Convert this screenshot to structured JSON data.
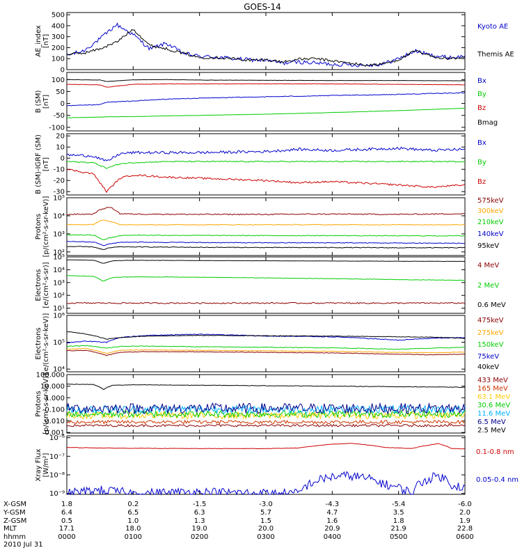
{
  "title": "GOES-14",
  "chart_data": [
    {
      "type": "line",
      "panel": "ae-index",
      "ylabel": [
        "AE_index",
        "[nT]"
      ],
      "yticks": [
        0,
        100,
        200,
        300,
        400,
        500
      ],
      "ylim": [
        0,
        520
      ],
      "x": [
        0,
        0.25,
        0.5,
        0.75,
        1.0,
        1.25,
        1.5,
        1.75,
        2.0,
        2.25,
        2.5,
        2.75,
        3.0,
        3.25,
        3.5,
        3.75,
        4.0,
        4.25,
        4.5,
        4.75,
        5.0,
        5.25,
        5.5,
        5.75,
        6.0
      ],
      "series": [
        {
          "name": "Kyoto AE",
          "color": "#0000cc",
          "values": [
            130,
            170,
            280,
            410,
            320,
            190,
            240,
            150,
            120,
            115,
            100,
            90,
            85,
            60,
            70,
            60,
            50,
            45,
            40,
            50,
            100,
            170,
            130,
            110,
            120
          ],
          "noise": 18
        },
        {
          "name": "Themis AE",
          "color": "#000000",
          "values": [
            140,
            150,
            190,
            250,
            370,
            220,
            190,
            150,
            110,
            110,
            100,
            85,
            90,
            70,
            95,
            100,
            80,
            60,
            40,
            50,
            90,
            170,
            120,
            100,
            110
          ],
          "noise": 12
        }
      ]
    },
    {
      "type": "line",
      "panel": "b-sm",
      "ylabel": [
        "B (SM)",
        "[nT]"
      ],
      "yticks": [
        -100,
        -50,
        0,
        50,
        100
      ],
      "ylim": [
        -115,
        130
      ],
      "x": [
        0,
        0.5,
        0.6,
        1.0,
        1.5,
        2.0,
        3.0,
        4.0,
        5.0,
        6.0
      ],
      "series": [
        {
          "name": "Bx",
          "color": "#0000cc",
          "values": [
            -10,
            -5,
            5,
            10,
            18,
            22,
            28,
            33,
            38,
            45
          ],
          "noise": 1.5
        },
        {
          "name": "By",
          "color": "#00cc00",
          "values": [
            -60,
            -57,
            -56,
            -55,
            -52,
            -50,
            -45,
            -38,
            -30,
            -20
          ],
          "noise": 0.5
        },
        {
          "name": "Bz",
          "color": "#cc0000",
          "values": [
            80,
            78,
            68,
            80,
            82,
            82,
            82,
            82,
            80,
            78
          ],
          "noise": 0.8
        },
        {
          "name": "Bmag",
          "color": "#000000",
          "values": [
            100,
            98,
            92,
            99,
            100,
            98,
            97,
            96,
            96,
            95
          ],
          "noise": 0.5
        }
      ]
    },
    {
      "type": "line",
      "panel": "b-minus-igrf",
      "ylabel": [
        "B (SM)-IGRF (SM)",
        "[nT]"
      ],
      "yticks": [
        -30,
        -20,
        -10,
        0,
        10,
        20
      ],
      "ylim": [
        -33,
        22
      ],
      "x": [
        0,
        0.4,
        0.6,
        0.8,
        1.0,
        1.5,
        2.0,
        3.0,
        3.5,
        4.0,
        5.0,
        5.5,
        6.0
      ],
      "series": [
        {
          "name": "Bx",
          "color": "#0000cc",
          "values": [
            3,
            2,
            -3,
            4,
            5,
            5,
            5,
            6,
            8,
            7,
            9,
            7,
            8
          ],
          "noise": 1.2
        },
        {
          "name": "By",
          "color": "#00cc00",
          "values": [
            -3,
            -4,
            -9,
            -5,
            -4,
            -3,
            -3,
            -3,
            -3,
            -3,
            -3,
            -3,
            -3
          ],
          "noise": 0.5
        },
        {
          "name": "Bz",
          "color": "#cc0000",
          "values": [
            -10,
            -14,
            -30,
            -18,
            -15,
            -17,
            -18,
            -20,
            -22,
            -21,
            -24,
            -26,
            -24
          ],
          "noise": 0.8
        }
      ]
    },
    {
      "type": "line",
      "panel": "protons-low",
      "log": true,
      "ylabel": [
        "Protons",
        "[p/(cm²-s-sr-keV)]"
      ],
      "yticks": [
        "10²",
        "10³",
        "10⁴",
        "10⁵"
      ],
      "ylim_exp": [
        1.8,
        5.0
      ],
      "x": [
        0,
        0.4,
        0.55,
        0.65,
        0.8,
        1.0,
        2.0,
        3.0,
        4.0,
        5.0,
        6.0
      ],
      "series": [
        {
          "name": "575keV",
          "color": "#8b0000",
          "values": [
            12000,
            12500,
            25000,
            30000,
            13000,
            12500,
            12000,
            12000,
            12500,
            12000,
            13000
          ],
          "noise": 0.03
        },
        {
          "name": "300keV",
          "color": "#ffa500",
          "values": [
            3200,
            3300,
            6000,
            5000,
            3300,
            3200,
            3200,
            3200,
            3200,
            3200,
            3200
          ],
          "noise": 0.02
        },
        {
          "name": "210keV",
          "color": "#00cc00",
          "values": [
            900,
            850,
            450,
            600,
            800,
            850,
            820,
            800,
            800,
            780,
            780
          ],
          "noise": 0.02
        },
        {
          "name": "140keV",
          "color": "#0000cc",
          "values": [
            380,
            360,
            220,
            280,
            340,
            350,
            330,
            320,
            320,
            310,
            300
          ],
          "noise": 0.02
        },
        {
          "name": "95keV",
          "color": "#000000",
          "values": [
            200,
            190,
            130,
            170,
            190,
            190,
            180,
            175,
            175,
            170,
            170
          ],
          "noise": 0.02
        }
      ]
    },
    {
      "type": "line",
      "panel": "electrons-mev",
      "log": true,
      "ylabel": [
        "Electrons",
        "[e/(cm²-s-sr)]"
      ],
      "yticks": [
        "10¹",
        "10²",
        "10³",
        "10⁴",
        "10⁵"
      ],
      "ylim_exp": [
        0.6,
        5.0
      ],
      "x": [
        0,
        0.4,
        0.55,
        0.7,
        1.0,
        2.0,
        3.0,
        4.0,
        5.0,
        6.0
      ],
      "series": [
        {
          "name": "4 MeV",
          "color": "#8b0000",
          "values": [
            25,
            25,
            25,
            25,
            25,
            25,
            25,
            25,
            25,
            25
          ],
          "noise": 0.05
        },
        {
          "name": "2 MeV",
          "color": "#00cc00",
          "values": [
            3500,
            3000,
            1200,
            2500,
            2800,
            2600,
            2300,
            2000,
            1700,
            1500
          ],
          "noise": 0.015
        },
        {
          "name": "0.6 MeV",
          "color": "#000000",
          "values": [
            60000,
            55000,
            30000,
            50000,
            55000,
            52000,
            50000,
            48000,
            46000,
            45000
          ],
          "noise": 0.01
        }
      ]
    },
    {
      "type": "line",
      "panel": "electrons-kev",
      "log": true,
      "ylabel": [
        "Electrons",
        "[e/(cm²-s-sr-keV)]"
      ],
      "yticks": [
        "10⁴",
        "10⁵",
        "10⁶"
      ],
      "ylim_exp": [
        3.9,
        6.0
      ],
      "x": [
        0,
        0.3,
        0.6,
        0.8,
        1.2,
        2.0,
        3.0,
        4.0,
        5.0,
        5.5,
        6.0
      ],
      "series": [
        {
          "name": "475keV",
          "color": "#8b0000",
          "values": [
            48000,
            50000,
            32000,
            42000,
            45000,
            44000,
            42000,
            40000,
            36000,
            34000,
            36000
          ],
          "noise": 0.01
        },
        {
          "name": "275keV",
          "color": "#ffa500",
          "values": [
            55000,
            58000,
            38000,
            50000,
            52000,
            50000,
            48000,
            46000,
            42000,
            41000,
            43000
          ],
          "noise": 0.01
        },
        {
          "name": "150keV",
          "color": "#00cc00",
          "values": [
            70000,
            75000,
            60000,
            70000,
            72000,
            68000,
            65000,
            62000,
            55000,
            60000,
            65000
          ],
          "noise": 0.012
        },
        {
          "name": "75keV",
          "color": "#0000cc",
          "values": [
            95000,
            110000,
            100000,
            150000,
            180000,
            200000,
            170000,
            160000,
            120000,
            140000,
            150000
          ],
          "noise": 0.015
        },
        {
          "name": "40keV",
          "color": "#000000",
          "values": [
            250000,
            200000,
            130000,
            150000,
            170000,
            180000,
            175000,
            170000,
            160000,
            155000,
            140000
          ],
          "noise": 0.01
        }
      ]
    },
    {
      "type": "line",
      "panel": "protons-mev",
      "log": true,
      "ylabel": [
        "Protons",
        "[p/(cm²-s-sr-keV)]"
      ],
      "yticks": [
        "0.001",
        "0.010",
        "0.100",
        "1.000",
        "10.000",
        "100.000"
      ],
      "ylim_exp": [
        -3.05,
        2.0
      ],
      "x": [
        0,
        0.4,
        0.55,
        0.7,
        1.0,
        2.0,
        3.0,
        4.0,
        5.0,
        6.0
      ],
      "series": [
        {
          "name": "433 MeV",
          "color": "#8b0000",
          "values": [
            0.004,
            0.004,
            0.004,
            0.004,
            0.004,
            0.004,
            0.004,
            0.004,
            0.004,
            0.004
          ],
          "noise": 0.1
        },
        {
          "name": "165 MeV",
          "color": "#cc3300",
          "values": [
            0.008,
            0.008,
            0.008,
            0.008,
            0.008,
            0.008,
            0.008,
            0.008,
            0.008,
            0.008
          ],
          "noise": 0.15
        },
        {
          "name": "63.1 MeV",
          "color": "#ffcc00",
          "values": [
            0.03,
            0.03,
            0.03,
            0.03,
            0.03,
            0.03,
            0.03,
            0.03,
            0.03,
            0.03
          ],
          "noise": 0.3
        },
        {
          "name": "30.6 MeV",
          "color": "#00cc00",
          "values": [
            0.04,
            0.04,
            0.04,
            0.04,
            0.04,
            0.04,
            0.04,
            0.04,
            0.04,
            0.04
          ],
          "noise": 0.3
        },
        {
          "name": "11.6 MeV",
          "color": "#00b0ff",
          "values": [
            0.1,
            0.1,
            0.1,
            0.1,
            0.1,
            0.1,
            0.1,
            0.1,
            0.1,
            0.1
          ],
          "noise": 0.35
        },
        {
          "name": "6.5 MeV",
          "color": "#000088",
          "values": [
            0.12,
            0.12,
            0.12,
            0.12,
            0.12,
            0.12,
            0.12,
            0.12,
            0.12,
            0.12
          ],
          "noise": 0.45
        },
        {
          "name": "2.5 MeV",
          "color": "#000000",
          "values": [
            15,
            14,
            5,
            12,
            13,
            12,
            11,
            10,
            9,
            8
          ],
          "noise": 0.02
        }
      ]
    },
    {
      "type": "line",
      "panel": "xray",
      "log": true,
      "ylabel": [
        "Xray Flux",
        "[W/m²]"
      ],
      "yticks": [
        "10⁻⁹",
        "10⁻⁸",
        "10⁻⁷",
        "10⁻⁶"
      ],
      "ytick_exp": [
        -9,
        -8,
        -7,
        -6
      ],
      "ylim_exp": [
        -9.05,
        -5.9
      ],
      "x": [
        0,
        0.5,
        1.0,
        2.0,
        3.0,
        3.5,
        4.0,
        4.3,
        4.8,
        5.2,
        5.6,
        5.8,
        6.0
      ],
      "series": [
        {
          "name": "0.1-0.8 nm",
          "color": "#cc0000",
          "values": [
            3e-07,
            2.8e-07,
            2.7e-07,
            2.6e-07,
            2.6e-07,
            2.8e-07,
            4.5e-07,
            5e-07,
            3e-07,
            2.6e-07,
            4.8e-07,
            2.6e-07,
            2.5e-07
          ],
          "noise": 0.01
        },
        {
          "name": "0.05-0.4 nm",
          "color": "#0000cc",
          "values": [
            1e-09,
            1.5e-09,
            1e-09,
            1.2e-09,
            1e-09,
            1e-09,
            8e-09,
            9e-09,
            3e-09,
            1e-09,
            9e-09,
            3e-09,
            2e-09
          ],
          "noise": 0.25
        }
      ]
    }
  ],
  "footer": {
    "row_labels": [
      "X-GSM",
      "Y-GSM",
      "Z-GSM",
      "MLT",
      "hhmm",
      "2010 Jul 31"
    ],
    "columns": [
      {
        "x_gsm": "1.8",
        "y_gsm": "6.4",
        "z_gsm": "0.5",
        "mlt": "17.1",
        "hhmm": "0000"
      },
      {
        "x_gsm": "0.2",
        "y_gsm": "6.5",
        "z_gsm": "1.0",
        "mlt": "18.0",
        "hhmm": "0100"
      },
      {
        "x_gsm": "-1.5",
        "y_gsm": "6.3",
        "z_gsm": "1.3",
        "mlt": "19.0",
        "hhmm": "0200"
      },
      {
        "x_gsm": "-3.0",
        "y_gsm": "5.7",
        "z_gsm": "1.5",
        "mlt": "20.0",
        "hhmm": "0300"
      },
      {
        "x_gsm": "-4.3",
        "y_gsm": "4.7",
        "z_gsm": "1.6",
        "mlt": "20.9",
        "hhmm": "0400"
      },
      {
        "x_gsm": "-5.4",
        "y_gsm": "3.5",
        "z_gsm": "1.8",
        "mlt": "21.9",
        "hhmm": "0500"
      },
      {
        "x_gsm": "-6.0",
        "y_gsm": "2.0",
        "z_gsm": "1.9",
        "mlt": "22.8",
        "hhmm": "0600"
      }
    ]
  }
}
